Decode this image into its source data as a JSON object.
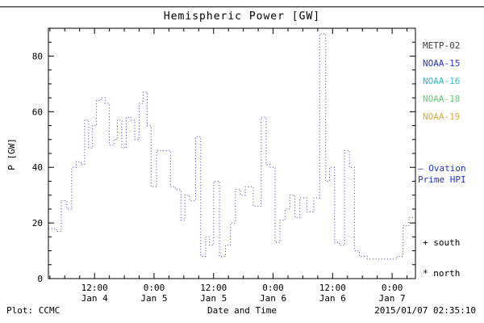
{
  "chart_data": {
    "type": "line",
    "style": "dotted-step",
    "title": "Hemispheric Power [GW]",
    "xlabel": "Date and Time",
    "ylabel": "P [GW]",
    "ylim": [
      0,
      90
    ],
    "y_major_ticks": [
      0,
      20,
      40,
      60,
      80
    ],
    "y_minor_step": 5,
    "x_range_hours": [
      2.7,
      76.7
    ],
    "x_unit": "hours from Jan 4 00:00",
    "x_minor_step_hours": 3,
    "grid": false,
    "x_ticks": [
      {
        "hour": 12,
        "time": "12:00",
        "date": "Jan 4"
      },
      {
        "hour": 24,
        "time": "0:00",
        "date": "Jan 5"
      },
      {
        "hour": 36,
        "time": "12:00",
        "date": "Jan 5"
      },
      {
        "hour": 48,
        "time": "0:00",
        "date": "Jan 6"
      },
      {
        "hour": 60,
        "time": "12:00",
        "date": "Jan 6"
      },
      {
        "hour": 72,
        "time": "0:00",
        "date": "Jan 7"
      }
    ],
    "series": [
      {
        "name": "NOAA-15 Ovation Prime HPI (north)",
        "color": "#3333cc",
        "points": [
          [
            2.7,
            18
          ],
          [
            4.3,
            17
          ],
          [
            5.3,
            28
          ],
          [
            6.4,
            25
          ],
          [
            7.4,
            40
          ],
          [
            8.3,
            42
          ],
          [
            9.3,
            41
          ],
          [
            10.0,
            57
          ],
          [
            10.8,
            47
          ],
          [
            11.6,
            55
          ],
          [
            12.4,
            64
          ],
          [
            13.3,
            65
          ],
          [
            14.2,
            63
          ],
          [
            15.0,
            48
          ],
          [
            15.9,
            50
          ],
          [
            16.6,
            57
          ],
          [
            17.5,
            47
          ],
          [
            18.4,
            58
          ],
          [
            19.3,
            57
          ],
          [
            20.1,
            50
          ],
          [
            21.0,
            63
          ],
          [
            21.8,
            67
          ],
          [
            22.6,
            55
          ],
          [
            23.4,
            33
          ],
          [
            24.5,
            46
          ],
          [
            26.2,
            46
          ],
          [
            27.3,
            33
          ],
          [
            28.3,
            32
          ],
          [
            29.4,
            21
          ],
          [
            30.2,
            30
          ],
          [
            31.2,
            28
          ],
          [
            32.4,
            51
          ],
          [
            33.4,
            8
          ],
          [
            34.4,
            15
          ],
          [
            35.2,
            12
          ],
          [
            36.0,
            35
          ],
          [
            37.2,
            8
          ],
          [
            38.4,
            12
          ],
          [
            39.4,
            20
          ],
          [
            40.4,
            32
          ],
          [
            41.4,
            30
          ],
          [
            42.4,
            33
          ],
          [
            44.0,
            26
          ],
          [
            45.6,
            58
          ],
          [
            46.6,
            41
          ],
          [
            47.4,
            40
          ],
          [
            48.4,
            13
          ],
          [
            49.4,
            21
          ],
          [
            50.4,
            25
          ],
          [
            51.4,
            30
          ],
          [
            52.4,
            22
          ],
          [
            53.4,
            29
          ],
          [
            54.8,
            24
          ],
          [
            56.2,
            29
          ],
          [
            57.4,
            88
          ],
          [
            58.6,
            35
          ],
          [
            59.4,
            40
          ],
          [
            60.4,
            13
          ],
          [
            61.4,
            12
          ],
          [
            62.4,
            46
          ],
          [
            63.4,
            40
          ],
          [
            64.4,
            10
          ],
          [
            65.4,
            8
          ],
          [
            67.0,
            7
          ],
          [
            73.0,
            8
          ],
          [
            74.2,
            19
          ],
          [
            75.4,
            22
          ],
          [
            76.7,
            22
          ]
        ]
      }
    ]
  },
  "legend": {
    "satellites": [
      {
        "label": "METP-02",
        "color": "#3c3c3c"
      },
      {
        "label": "NOAA-15",
        "color": "#2233cc"
      },
      {
        "label": "NOAA-16",
        "color": "#33bbcc"
      },
      {
        "label": "NOAA-18",
        "color": "#66cc77"
      },
      {
        "label": "NOAA-19",
        "color": "#ddaa44"
      }
    ],
    "model": {
      "line1": "— Ovation",
      "line2": "Prime HPI",
      "color": "#2233cc"
    },
    "south_marker": "+ south",
    "north_marker": "* north"
  },
  "footer": {
    "plot_credit": "Plot: CCMC",
    "timestamp": "2015/01/07 02:35:10"
  }
}
